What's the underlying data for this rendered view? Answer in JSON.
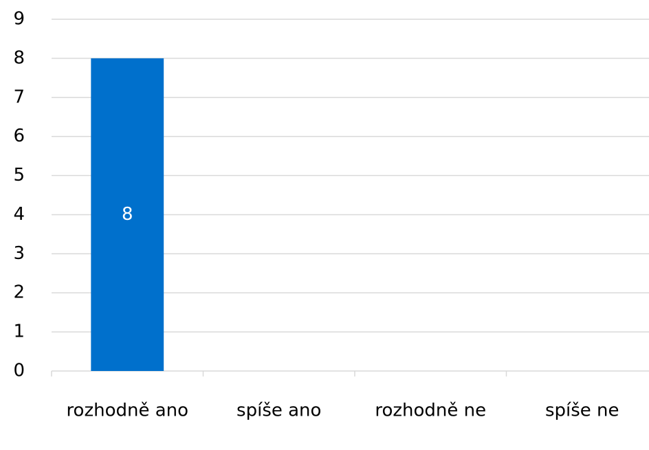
{
  "chart_data": {
    "type": "bar",
    "categories": [
      "rozhodně ano",
      "spíše ano",
      "rozhodně ne",
      "spíše ne"
    ],
    "values": [
      8,
      0,
      0,
      0
    ],
    "color": "#0070cc",
    "ylim": [
      0,
      9
    ],
    "yticks": [
      0,
      1,
      2,
      3,
      4,
      5,
      6,
      7,
      8,
      9
    ],
    "grid": true
  }
}
